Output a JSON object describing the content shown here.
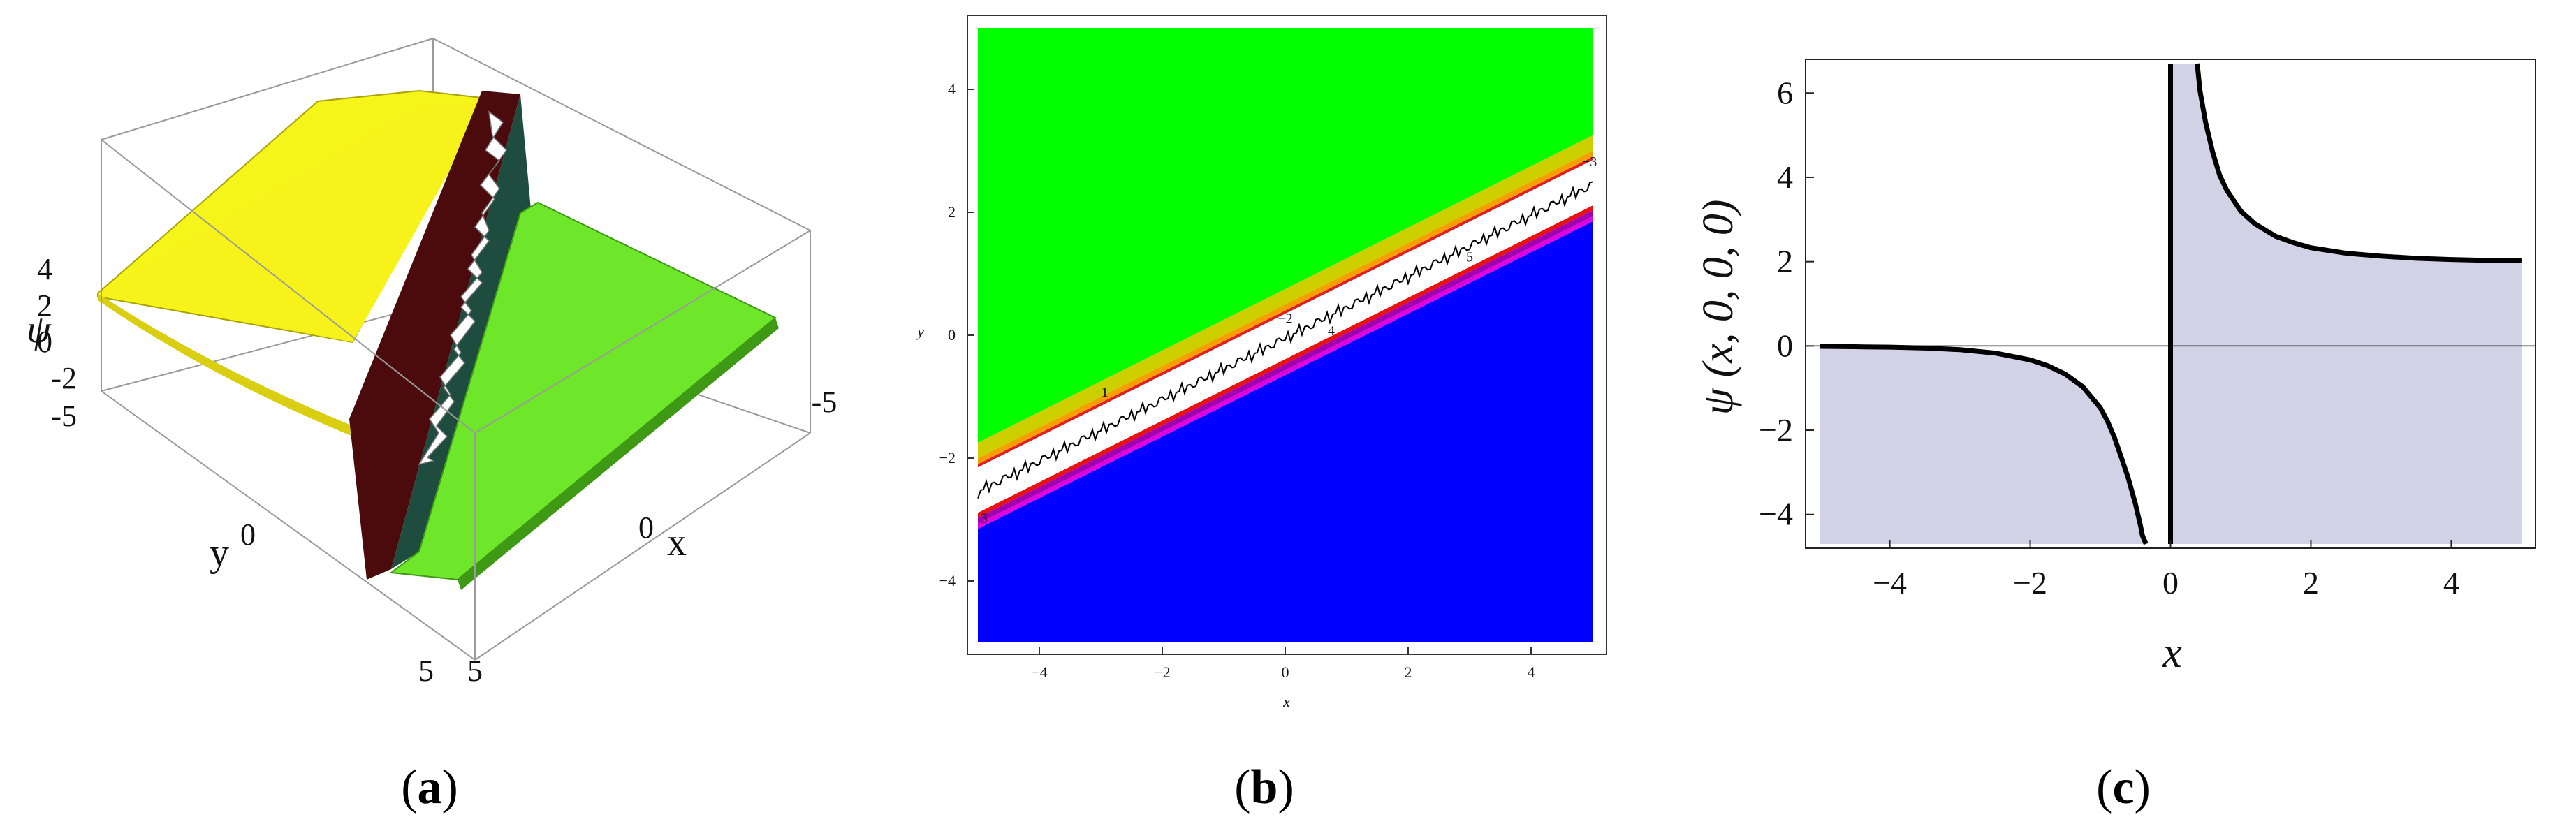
{
  "panels": {
    "a": {
      "label": "a"
    },
    "b": {
      "label": "b"
    },
    "c": {
      "label": "c"
    }
  },
  "chart_data": [
    {
      "type": "surface3d",
      "panel": "a",
      "axis_labels": {
        "x": "x",
        "y": "y",
        "z": "ψ"
      },
      "x_ticks": [
        "-5",
        "0",
        "5"
      ],
      "y_ticks": [
        "-5",
        "0",
        "5"
      ],
      "z_ticks": [
        "4",
        "2",
        "0",
        "-2"
      ],
      "xlim": [
        -5,
        5
      ],
      "ylim": [
        -5,
        5
      ],
      "zlim": [
        -2,
        5
      ],
      "plateau_values": {
        "left_side": 3,
        "right_side": 2
      },
      "colors": {
        "left": "#f5f519",
        "right": "#6ee62a",
        "wall": "#5a0f12",
        "box": "#aaaaaa"
      }
    },
    {
      "type": "contour",
      "panel": "b",
      "axis_labels": {
        "x": "x",
        "y": "y"
      },
      "x_ticks": [
        "-4",
        "-2",
        "0",
        "2",
        "4"
      ],
      "y_ticks": [
        "4",
        "2",
        "0",
        "-2",
        "-4"
      ],
      "xlim": [
        -5,
        5
      ],
      "ylim": [
        -5,
        5
      ],
      "singular_line": {
        "y_at_x_minus5": -2.55,
        "y_at_x_plus5": 2.45
      },
      "band_offsets": [
        {
          "from": 0.55,
          "to": 0.8,
          "color": "#ccd000"
        },
        {
          "from": 0.45,
          "to": 0.55,
          "color": "#f5a000"
        },
        {
          "from": 0.4,
          "to": 0.45,
          "color": "#e02020"
        },
        {
          "from": -0.42,
          "to": -0.34,
          "color": "#e81010"
        },
        {
          "from": -0.52,
          "to": -0.42,
          "color": "#a000b0"
        },
        {
          "from": -0.6,
          "to": -0.52,
          "color": "#e000e0"
        }
      ],
      "contour_labels": [
        {
          "text": "−1",
          "x": -3.0,
          "y": -1.0
        },
        {
          "text": "−2",
          "x": 0.0,
          "y": 0.2
        },
        {
          "text": "−3",
          "x": 4.95,
          "y": 2.75
        },
        {
          "text": "4",
          "x": 0.75,
          "y": 0.0
        },
        {
          "text": "5",
          "x": 3.0,
          "y": 1.2
        },
        {
          "text": "3",
          "x": -4.9,
          "y": -3.05
        }
      ],
      "colors": {
        "upper": "#00ff00",
        "lower": "#0000ff",
        "line": "#000000"
      }
    },
    {
      "type": "line",
      "panel": "c",
      "xlabel": "x",
      "ylabel": "ψ (x, 0, 0, 0)",
      "x_ticks": [
        -4,
        -2,
        0,
        2,
        4
      ],
      "y_ticks": [
        6,
        4,
        2,
        0,
        -2,
        -4
      ],
      "xlim": [
        -5.2,
        5.2
      ],
      "ylim": [
        -4.8,
        6.8
      ],
      "series": [
        {
          "x": [
            -5.0,
            -4.5,
            -4.0,
            -3.5,
            -3.0,
            -2.5,
            -2.0,
            -1.75,
            -1.5,
            -1.25,
            -1.0,
            -0.9,
            -0.8,
            -0.7,
            -0.6,
            -0.5,
            -0.43,
            -0.4,
            -0.35
          ],
          "y": [
            -0.01,
            -0.02,
            -0.03,
            -0.05,
            -0.09,
            -0.17,
            -0.33,
            -0.47,
            -0.67,
            -0.97,
            -1.47,
            -1.78,
            -2.17,
            -2.65,
            -3.15,
            -3.75,
            -4.25,
            -4.5,
            -4.7
          ]
        },
        {
          "x": [
            0.38,
            0.42,
            0.5,
            0.6,
            0.7,
            0.8,
            1.0,
            1.2,
            1.5,
            1.75,
            2.0,
            2.5,
            3.0,
            3.5,
            4.0,
            4.5,
            5.0
          ],
          "y": [
            6.7,
            6.05,
            5.3,
            4.6,
            4.05,
            3.7,
            3.2,
            2.9,
            2.6,
            2.45,
            2.33,
            2.2,
            2.13,
            2.08,
            2.05,
            2.03,
            2.02
          ]
        }
      ],
      "fill_color": "#d2d2e6",
      "line_color": "#000000"
    }
  ]
}
